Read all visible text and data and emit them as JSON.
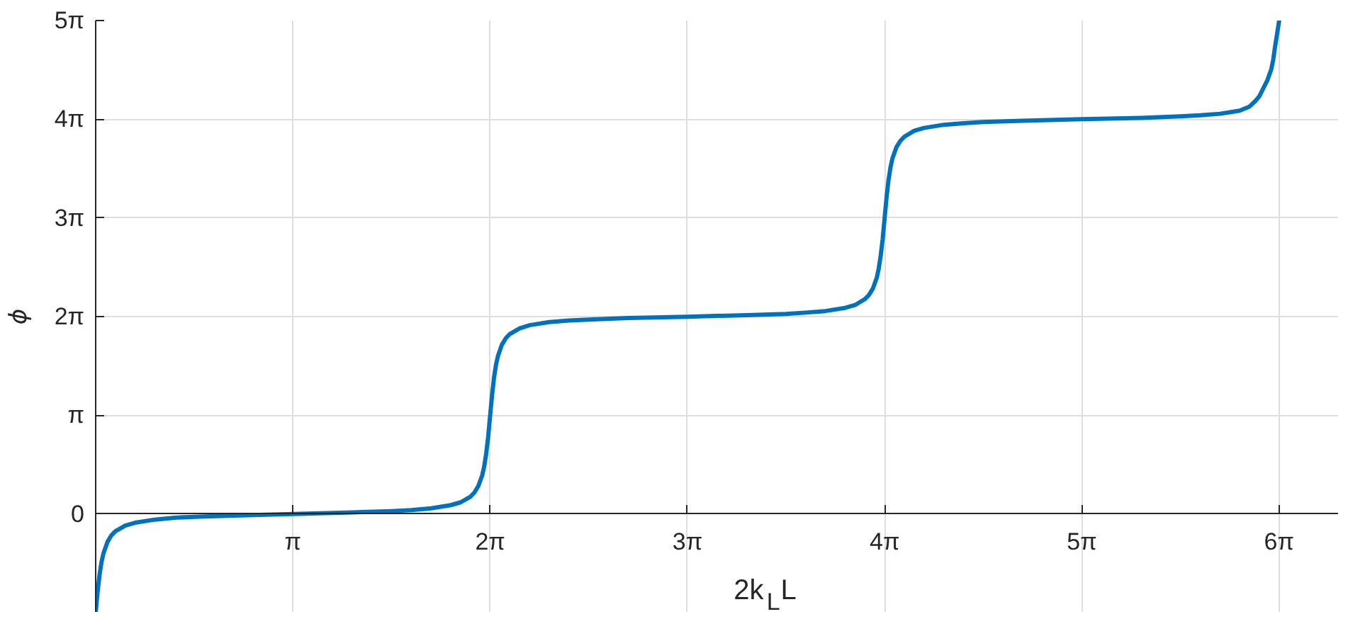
{
  "chart_data": {
    "type": "line",
    "xlabel": "2k$_{L}$L",
    "ylabel": "ϕ",
    "x": [
      0,
      0.031,
      0.063,
      0.094,
      0.126,
      0.188,
      0.251,
      0.314,
      0.471,
      0.628,
      0.942,
      1.257,
      1.571,
      2.199,
      3.142,
      4.084,
      4.712,
      5.027,
      5.341,
      5.655,
      5.812,
      5.969,
      6.032,
      6.095,
      6.158,
      6.189,
      6.22,
      6.252,
      6.283,
      6.315,
      6.346,
      6.377,
      6.409,
      6.471,
      6.535,
      6.597,
      6.754,
      6.912,
      7.226,
      7.54,
      7.854,
      8.482,
      9.425,
      10.367,
      10.996,
      11.31,
      11.624,
      11.938,
      12.095,
      12.252,
      12.315,
      12.378,
      12.441,
      12.472,
      12.503,
      12.535,
      12.566,
      12.598,
      12.629,
      12.66,
      12.692,
      12.755,
      12.818,
      12.881,
      13.038,
      13.195,
      13.509,
      13.823,
      14.137,
      14.765,
      15.708,
      16.65,
      17.279,
      17.593,
      17.907,
      18.064,
      18.221,
      18.378,
      18.473,
      18.535,
      18.598,
      18.661,
      18.724,
      18.755,
      18.787,
      18.818,
      18.85
    ],
    "series": [
      {
        "color": "#0072bd",
        "values": [
          -3.14,
          -2.47,
          -1.92,
          -1.52,
          -1.24,
          -0.89,
          -0.68,
          -0.55,
          -0.37,
          -0.28,
          -0.18,
          -0.12,
          -0.09,
          -0.05,
          0,
          0.05,
          0.09,
          0.12,
          0.18,
          0.28,
          0.37,
          0.55,
          0.68,
          0.89,
          1.24,
          1.52,
          1.92,
          2.47,
          3.14,
          3.81,
          4.36,
          4.76,
          5.04,
          5.39,
          5.6,
          5.73,
          5.91,
          6.01,
          6.11,
          6.16,
          6.19,
          6.24,
          6.28,
          6.33,
          6.37,
          6.41,
          6.46,
          6.56,
          6.65,
          6.84,
          6.97,
          7.17,
          7.52,
          7.81,
          8.21,
          8.75,
          9.42,
          10.1,
          10.64,
          11.04,
          11.33,
          11.68,
          11.88,
          12.01,
          12.2,
          12.29,
          12.39,
          12.44,
          12.48,
          12.52,
          12.57,
          12.61,
          12.66,
          12.69,
          12.74,
          12.79,
          12.84,
          12.97,
          13.15,
          13.3,
          13.55,
          13.8,
          14.15,
          14.45,
          14.9,
          15.3,
          15.7
        ]
      }
    ],
    "xlim": [
      0,
      19.8
    ],
    "ylim": [
      -3.1416,
      15.708
    ],
    "xticks": [
      {
        "value": 3.1416,
        "label": "π"
      },
      {
        "value": 6.2832,
        "label": "2π"
      },
      {
        "value": 9.4248,
        "label": "3π"
      },
      {
        "value": 12.5664,
        "label": "4π"
      },
      {
        "value": 15.708,
        "label": "5π"
      },
      {
        "value": 18.8496,
        "label": "6π"
      }
    ],
    "yticks": [
      0,
      {
        "value": 3.1416,
        "label": "π"
      },
      {
        "value": 6.2832,
        "label": "2π"
      },
      {
        "value": 9.4248,
        "label": "3π"
      },
      {
        "value": 12.5664,
        "label": "4π"
      },
      {
        "value": 15.708,
        "label": "5π"
      }
    ],
    "grid": true,
    "line_style": "solid"
  }
}
